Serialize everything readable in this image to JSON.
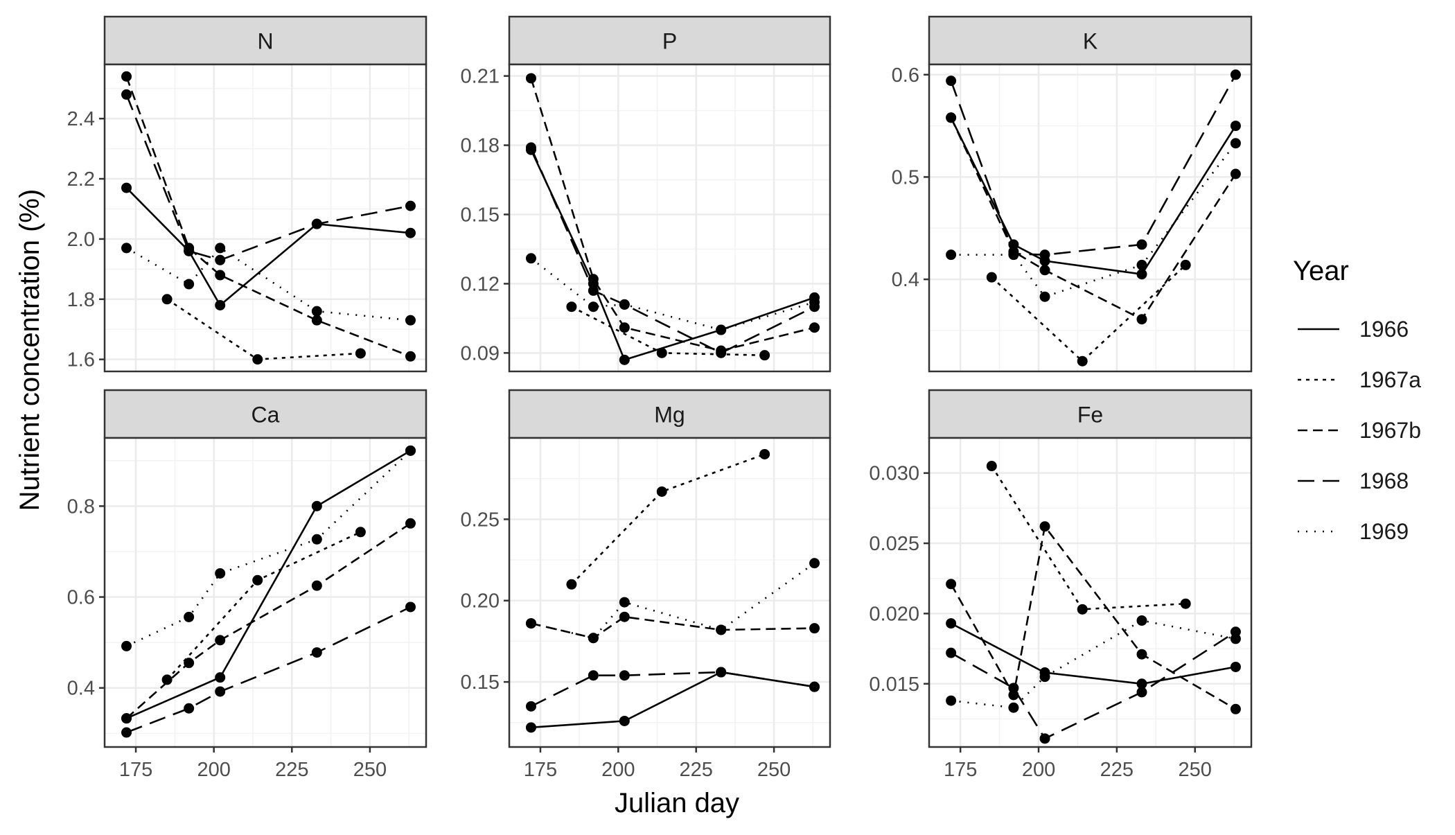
{
  "figure": {
    "ylabel": "Nutrient concentration (%)",
    "xlabel": "Julian day",
    "legend_title": "Year",
    "legend_items": [
      "1966",
      "1967a",
      "1967b",
      "1968",
      "1969"
    ]
  },
  "chart_data": [
    {
      "type": "line",
      "facet": "N",
      "title": "N",
      "xlim": [
        165,
        268
      ],
      "ylim": [
        1.56,
        2.58
      ],
      "xticks": [
        175,
        200,
        225,
        250
      ],
      "xtick_labels": [
        "175",
        "200",
        "225",
        "250"
      ],
      "yticks": [
        1.6,
        1.8,
        2.0,
        2.2,
        2.4
      ],
      "ytick_labels": [
        "1.6",
        "1.8",
        "2.0",
        "2.2",
        "2.4"
      ],
      "series": [
        {
          "name": "1966",
          "x": [
            172,
            192,
            202,
            233,
            263
          ],
          "y": [
            2.17,
            1.96,
            1.78,
            2.05,
            2.02
          ]
        },
        {
          "name": "1967a",
          "x": [
            185,
            214,
            247
          ],
          "y": [
            1.8,
            1.6,
            1.62
          ]
        },
        {
          "name": "1967b",
          "x": [
            172,
            192,
            202,
            233,
            263
          ],
          "y": [
            2.54,
            1.97,
            1.88,
            1.73,
            1.61
          ]
        },
        {
          "name": "1968",
          "x": [
            172,
            192,
            202,
            233,
            263
          ],
          "y": [
            2.48,
            1.96,
            1.93,
            2.05,
            2.11
          ]
        },
        {
          "name": "1969",
          "x": [
            172,
            192,
            202,
            233,
            263
          ],
          "y": [
            1.97,
            1.85,
            1.97,
            1.76,
            1.73
          ]
        }
      ]
    },
    {
      "type": "line",
      "facet": "P",
      "title": "P",
      "xlim": [
        165,
        268
      ],
      "ylim": [
        0.082,
        0.215
      ],
      "xticks": [
        175,
        200,
        225,
        250
      ],
      "xtick_labels": [
        "175",
        "200",
        "225",
        "250"
      ],
      "yticks": [
        0.09,
        0.12,
        0.15,
        0.18,
        0.21
      ],
      "ytick_labels": [
        "0.09",
        "0.12",
        "0.15",
        "0.18",
        "0.21"
      ],
      "series": [
        {
          "name": "1966",
          "x": [
            172,
            192,
            202,
            233,
            263
          ],
          "y": [
            0.178,
            0.12,
            0.087,
            0.1,
            0.114
          ]
        },
        {
          "name": "1967a",
          "x": [
            185,
            214,
            247
          ],
          "y": [
            0.11,
            0.09,
            0.089
          ]
        },
        {
          "name": "1967b",
          "x": [
            172,
            192,
            202,
            233,
            263
          ],
          "y": [
            0.209,
            0.122,
            0.101,
            0.091,
            0.101
          ]
        },
        {
          "name": "1968",
          "x": [
            172,
            192,
            202,
            233,
            263
          ],
          "y": [
            0.179,
            0.117,
            0.111,
            0.09,
            0.11
          ]
        },
        {
          "name": "1969",
          "x": [
            172,
            192,
            202,
            233,
            263
          ],
          "y": [
            0.131,
            0.11,
            0.111,
            0.1,
            0.112
          ]
        }
      ]
    },
    {
      "type": "line",
      "facet": "K",
      "title": "K",
      "xlim": [
        165,
        268
      ],
      "ylim": [
        0.31,
        0.61
      ],
      "xticks": [
        175,
        200,
        225,
        250
      ],
      "xtick_labels": [
        "175",
        "200",
        "225",
        "250"
      ],
      "yticks": [
        0.4,
        0.5,
        0.6
      ],
      "ytick_labels": [
        "0.4",
        "0.5",
        "0.6"
      ],
      "series": [
        {
          "name": "1966",
          "x": [
            172,
            192,
            202,
            233,
            263
          ],
          "y": [
            0.558,
            0.434,
            0.418,
            0.405,
            0.55
          ]
        },
        {
          "name": "1967a",
          "x": [
            185,
            214,
            247
          ],
          "y": [
            0.402,
            0.32,
            0.414
          ]
        },
        {
          "name": "1967b",
          "x": [
            172,
            192,
            202,
            233,
            263
          ],
          "y": [
            0.558,
            0.427,
            0.409,
            0.361,
            0.503
          ]
        },
        {
          "name": "1968",
          "x": [
            172,
            192,
            202,
            233,
            263
          ],
          "y": [
            0.594,
            0.425,
            0.424,
            0.434,
            0.6
          ]
        },
        {
          "name": "1969",
          "x": [
            172,
            192,
            202,
            233,
            263
          ],
          "y": [
            0.424,
            0.424,
            0.383,
            0.414,
            0.533
          ]
        }
      ]
    },
    {
      "type": "line",
      "facet": "Ca",
      "title": "Ca",
      "xlim": [
        165,
        268
      ],
      "ylim": [
        0.27,
        0.95
      ],
      "xticks": [
        175,
        200,
        225,
        250
      ],
      "xtick_labels": [
        "175",
        "200",
        "225",
        "250"
      ],
      "yticks": [
        0.4,
        0.6,
        0.8
      ],
      "ytick_labels": [
        "0.4",
        "0.6",
        "0.8"
      ],
      "series": [
        {
          "name": "1966",
          "x": [
            172,
            202,
            233,
            263
          ],
          "y": [
            0.333,
            0.423,
            0.8,
            0.922
          ]
        },
        {
          "name": "1967a",
          "x": [
            185,
            214,
            247
          ],
          "y": [
            0.418,
            0.637,
            0.743
          ]
        },
        {
          "name": "1967b",
          "x": [
            172,
            192,
            202,
            233,
            263
          ],
          "y": [
            0.333,
            0.455,
            0.505,
            0.625,
            0.762
          ]
        },
        {
          "name": "1968",
          "x": [
            172,
            192,
            202,
            233,
            263
          ],
          "y": [
            0.302,
            0.355,
            0.392,
            0.478,
            0.578
          ]
        },
        {
          "name": "1969",
          "x": [
            172,
            192,
            202,
            233,
            263
          ],
          "y": [
            0.492,
            0.556,
            0.652,
            0.727,
            0.922
          ]
        }
      ]
    },
    {
      "type": "line",
      "facet": "Mg",
      "title": "Mg",
      "xlim": [
        165,
        268
      ],
      "ylim": [
        0.11,
        0.3
      ],
      "xticks": [
        175,
        200,
        225,
        250
      ],
      "xtick_labels": [
        "175",
        "200",
        "225",
        "250"
      ],
      "yticks": [
        0.15,
        0.2,
        0.25
      ],
      "ytick_labels": [
        "0.15",
        "0.20",
        "0.25"
      ],
      "series": [
        {
          "name": "1966",
          "x": [
            172,
            202,
            233,
            263
          ],
          "y": [
            0.122,
            0.126,
            0.156,
            0.147
          ]
        },
        {
          "name": "1967a",
          "x": [
            185,
            214,
            247
          ],
          "y": [
            0.21,
            0.267,
            0.29
          ]
        },
        {
          "name": "1967b",
          "x": [
            172,
            192,
            202,
            233,
            263
          ],
          "y": [
            0.186,
            0.177,
            0.19,
            0.182,
            0.183
          ]
        },
        {
          "name": "1968",
          "x": [
            172,
            192,
            202,
            233,
            263
          ],
          "y": [
            0.135,
            0.154,
            0.154,
            0.156,
            0.147
          ]
        },
        {
          "name": "1969",
          "x": [
            172,
            192,
            202,
            233,
            263
          ],
          "y": [
            0.186,
            0.177,
            0.199,
            0.182,
            0.223
          ]
        }
      ]
    },
    {
      "type": "line",
      "facet": "Fe",
      "title": "Fe",
      "xlim": [
        165,
        268
      ],
      "ylim": [
        0.0105,
        0.0325
      ],
      "xticks": [
        175,
        200,
        225,
        250
      ],
      "xtick_labels": [
        "175",
        "200",
        "225",
        "250"
      ],
      "yticks": [
        0.015,
        0.02,
        0.025,
        0.03
      ],
      "ytick_labels": [
        "0.015",
        "0.020",
        "0.025",
        "0.030"
      ],
      "series": [
        {
          "name": "1966",
          "x": [
            172,
            202,
            233,
            263
          ],
          "y": [
            0.0193,
            0.0158,
            0.015,
            0.0162
          ]
        },
        {
          "name": "1967a",
          "x": [
            185,
            214,
            247
          ],
          "y": [
            0.0305,
            0.0203,
            0.0207
          ]
        },
        {
          "name": "1967b",
          "x": [
            172,
            192,
            202,
            233,
            263
          ],
          "y": [
            0.0221,
            0.0142,
            0.0262,
            0.0171,
            0.0132
          ]
        },
        {
          "name": "1968",
          "x": [
            172,
            192,
            202,
            233,
            263
          ],
          "y": [
            0.0172,
            0.0147,
            0.0111,
            0.0144,
            0.0187
          ]
        },
        {
          "name": "1969",
          "x": [
            172,
            192,
            202,
            233,
            263
          ],
          "y": [
            0.0138,
            0.0133,
            0.0155,
            0.0195,
            0.0182
          ]
        }
      ]
    }
  ]
}
